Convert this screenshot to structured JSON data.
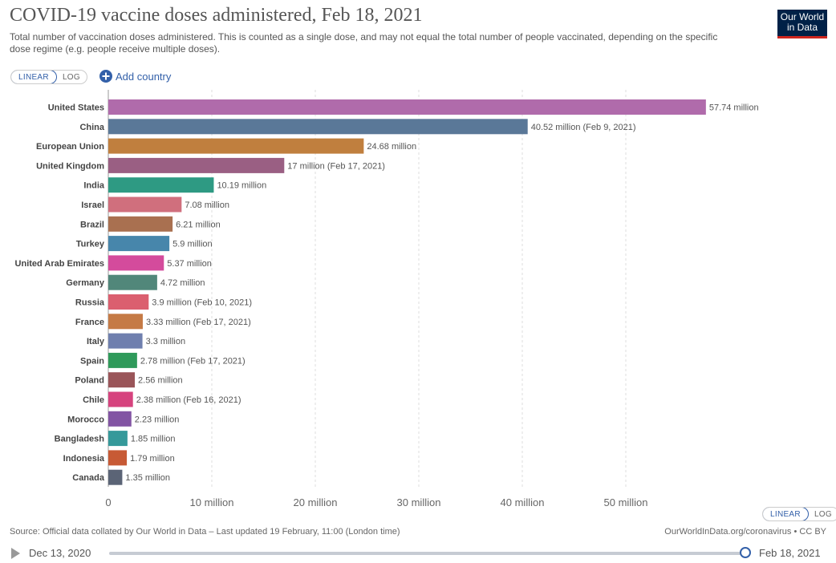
{
  "header": {
    "title": "COVID-19 vaccine doses administered, Feb 18, 2021",
    "subtitle": "Total number of vaccination doses administered. This is counted as a single dose, and may not equal the total number of people vaccinated, depending on the specific dose regime (e.g. people receive multiple doses).",
    "logo_line1": "Our World",
    "logo_line2": "in Data"
  },
  "controls": {
    "scale_linear": "LINEAR",
    "scale_log": "LOG",
    "add_country": "Add country",
    "selected_scale": "LINEAR"
  },
  "chart_data": {
    "type": "bar",
    "orientation": "horizontal",
    "categories": [
      "United States",
      "China",
      "European Union",
      "United Kingdom",
      "India",
      "Israel",
      "Brazil",
      "Turkey",
      "United Arab Emirates",
      "Germany",
      "Russia",
      "France",
      "Italy",
      "Spain",
      "Poland",
      "Chile",
      "Morocco",
      "Bangladesh",
      "Indonesia",
      "Canada"
    ],
    "values": [
      57.74,
      40.52,
      24.68,
      17,
      10.19,
      7.08,
      6.21,
      5.9,
      5.37,
      4.72,
      3.9,
      3.33,
      3.3,
      2.78,
      2.56,
      2.38,
      2.23,
      1.85,
      1.79,
      1.35
    ],
    "value_labels": [
      "57.74 million",
      "40.52 million (Feb 9, 2021)",
      "24.68 million",
      "17 million (Feb 17, 2021)",
      "10.19 million",
      "7.08 million",
      "6.21 million",
      "5.9 million",
      "5.37 million",
      "4.72 million",
      "3.9 million (Feb 10, 2021)",
      "3.33 million (Feb 17, 2021)",
      "3.3 million",
      "2.78 million (Feb 17, 2021)",
      "2.56 million",
      "2.38 million (Feb 16, 2021)",
      "2.23 million",
      "1.85 million",
      "1.79 million",
      "1.35 million"
    ],
    "colors": [
      "#b06bab",
      "#5a7898",
      "#c07f3e",
      "#9a5f83",
      "#2e9a83",
      "#d06f7d",
      "#a97050",
      "#4786ab",
      "#d44b9c",
      "#51877a",
      "#db5f6f",
      "#c57a45",
      "#6f7fae",
      "#2f9a5a",
      "#9a5559",
      "#d6437e",
      "#8254a3",
      "#35999a",
      "#c75a35",
      "#5b6476"
    ],
    "xlim": [
      0,
      60
    ],
    "xticks": [
      0,
      10,
      20,
      30,
      40,
      50
    ],
    "xtick_labels": [
      "0",
      "10 million",
      "20 million",
      "30 million",
      "40 million",
      "50 million"
    ],
    "grid": true,
    "xlabel": "",
    "ylabel": ""
  },
  "footer": {
    "source": "Source: Official data collated by Our World in Data – Last updated 19 February, 11:00 (London time)",
    "credit": "OurWorldInData.org/coronavirus • CC BY"
  },
  "timeline": {
    "start": "Dec 13, 2020",
    "end": "Feb 18, 2021",
    "position": 1.0
  }
}
